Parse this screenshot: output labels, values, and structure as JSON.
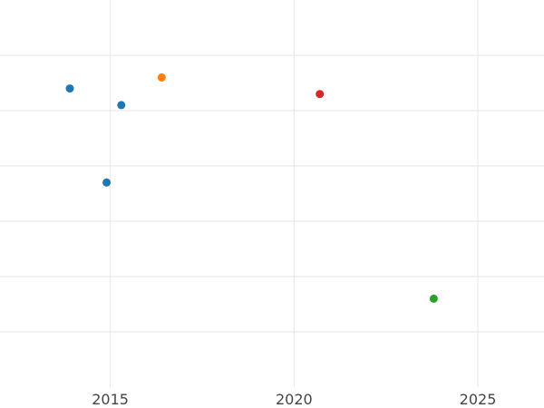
{
  "chart_data": {
    "type": "scatter",
    "title": "",
    "xlabel": "",
    "ylabel": "",
    "x_ticks": [
      2015,
      2020,
      2025
    ],
    "xlim": [
      2012.0,
      2026.8
    ],
    "ylim": [
      0,
      7
    ],
    "y_grid": [
      1,
      2,
      3,
      4,
      5,
      6
    ],
    "grid": true,
    "legend": "none",
    "points": [
      {
        "x": 2013.9,
        "y": 5.4,
        "color": "#1f77b4"
      },
      {
        "x": 2015.3,
        "y": 5.1,
        "color": "#1f77b4"
      },
      {
        "x": 2014.9,
        "y": 3.7,
        "color": "#1f77b4"
      },
      {
        "x": 2016.4,
        "y": 5.6,
        "color": "#ff7f0e"
      },
      {
        "x": 2020.7,
        "y": 5.3,
        "color": "#d62728"
      },
      {
        "x": 2023.8,
        "y": 1.6,
        "color": "#2ca02c"
      }
    ]
  }
}
